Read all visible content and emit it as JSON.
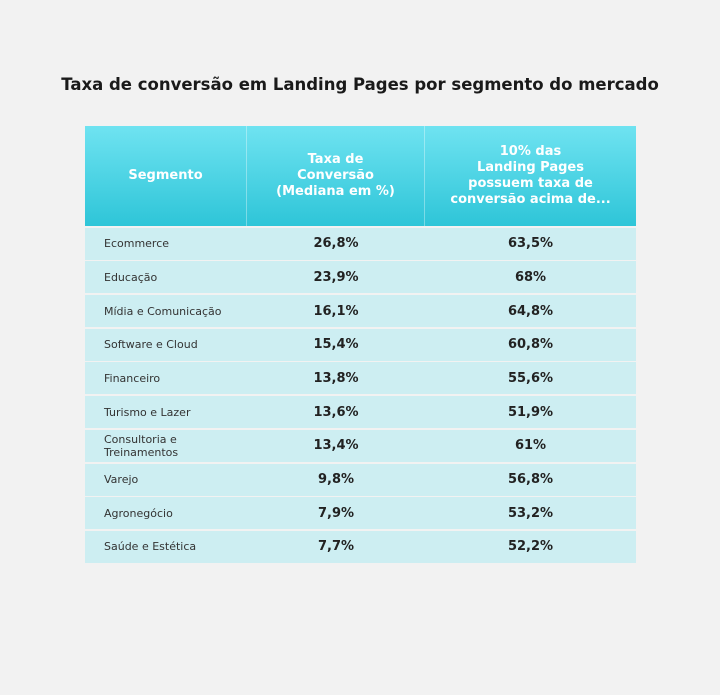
{
  "title": "Taxa de conversão em Landing Pages por segmento do mercado",
  "table": {
    "header": [
      [
        "Segmento"
      ],
      [
        "Taxa de",
        "Conversão",
        "(Mediana em %)"
      ],
      [
        "10% das",
        "Landing Pages",
        "possuem taxa de",
        "conversão acima de..."
      ]
    ],
    "rows": [
      [
        "Ecommerce",
        "26,8%",
        "63,5%"
      ],
      [
        "Educação",
        "23,9%",
        "68%"
      ],
      [
        "Mídia e Comunicação",
        "16,1%",
        "64,8%"
      ],
      [
        "Software e Cloud",
        "15,4%",
        "60,8%"
      ],
      [
        "Financeiro",
        "13,8%",
        "55,6%"
      ],
      [
        "Turismo e Lazer",
        "13,6%",
        "51,9%"
      ],
      [
        "Consultoria e Treinamentos",
        "13,4%",
        "61%"
      ],
      [
        "Varejo",
        "9,8%",
        "56,8%"
      ],
      [
        "Agronegócio",
        "7,9%",
        "53,2%"
      ],
      [
        "Saúde e Estética",
        "7,7%",
        "52,2%"
      ]
    ]
  }
}
